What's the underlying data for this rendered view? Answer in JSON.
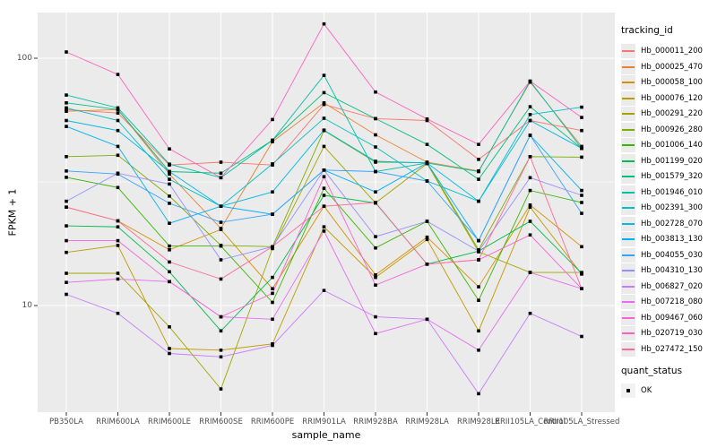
{
  "window": {
    "background": "#FFFFFF"
  },
  "axes": {
    "x_title": "sample_name",
    "y_title": "FPKM + 1",
    "y_tick_labels": [
      "100",
      "10"
    ]
  },
  "legend": {
    "tracking_title": "tracking_id",
    "quant_title": "quant_status",
    "quant_items": [
      {
        "label": "OK",
        "marker": "black-filled-square"
      }
    ]
  },
  "colors": {
    "panel_background": "#EBEBEB",
    "gridline": "#FFFFFF",
    "tick_text": "#4D4D4D",
    "point": "#000000"
  },
  "chart_data": {
    "type": "line",
    "title": "",
    "xlabel": "sample_name",
    "ylabel": "FPKM + 1",
    "y_scale": "log10",
    "ylim": [
      4,
      160
    ],
    "y_major_ticks": [
      100,
      10
    ],
    "y_minor_gridline_values": [
      31.6
    ],
    "grid": true,
    "legend_position": "right",
    "point_shape": "filled-square",
    "point_color": "#000000",
    "categories": [
      "PB350LA",
      "RRIM600LA",
      "RRIM600LE",
      "RRIM600SE",
      "RRIM600PE",
      "RRIM901LA",
      "RRIM928BA",
      "RRIM928LA",
      "RRIM928LE",
      "RRII105LA_Control",
      "RRII105LA_Stressed"
    ],
    "series": [
      {
        "name": "Hb_000011_200",
        "color": "#F8766D",
        "values": [
          62,
          60,
          37,
          38,
          37,
          65,
          57,
          56,
          39,
          56,
          51
        ]
      },
      {
        "name": "Hb_000025_470",
        "color": "#EA8331",
        "values": [
          61,
          62,
          34,
          20.5,
          46,
          66,
          49,
          38,
          35,
          80,
          44
        ]
      },
      {
        "name": "Hb_000058_100",
        "color": "#D89000",
        "values": [
          25,
          22,
          16.8,
          20.3,
          11.7,
          25.2,
          13.3,
          18.9,
          11.9,
          25.5,
          17.3
        ]
      },
      {
        "name": "Hb_000076_120",
        "color": "#C09B00",
        "values": [
          16.4,
          17.5,
          6.7,
          6.6,
          7.0,
          20.8,
          13.0,
          18.5,
          7.9,
          25.0,
          13.4
        ]
      },
      {
        "name": "Hb_000291_220",
        "color": "#A3A500",
        "values": [
          13.5,
          13.5,
          8.2,
          4.6,
          17.0,
          44,
          26.0,
          37.5,
          16.5,
          13.6,
          13.6
        ]
      },
      {
        "name": "Hb_000926_280",
        "color": "#7CAE00",
        "values": [
          40,
          40.5,
          27.7,
          17.5,
          17.3,
          51,
          38,
          37.8,
          16.8,
          40,
          39.8
        ]
      },
      {
        "name": "Hb_001006_140",
        "color": "#39B600",
        "values": [
          33,
          30,
          17.4,
          17.4,
          10.3,
          29.8,
          17.1,
          21.9,
          10.5,
          29.2,
          26.1
        ]
      },
      {
        "name": "Hb_001199_020",
        "color": "#00BB4E",
        "values": [
          21,
          20.8,
          13.7,
          7.9,
          13.0,
          27.9,
          26.0,
          14.7,
          16.6,
          21.9,
          13.5
        ]
      },
      {
        "name": "Hb_001579_320",
        "color": "#00BF7D",
        "values": [
          66,
          62,
          34.8,
          34.3,
          46.6,
          72.6,
          57,
          44.8,
          32.4,
          63.7,
          43.2
        ]
      },
      {
        "name": "Hb_001946_010",
        "color": "#00C1A3",
        "values": [
          71,
          63,
          37.3,
          32.9,
          46.6,
          85.3,
          34.8,
          37.7,
          34.8,
          80.8,
          43.2
        ]
      },
      {
        "name": "Hb_002391_300",
        "color": "#00BFC4",
        "values": [
          63,
          56,
          32.4,
          25.2,
          37.4,
          57.2,
          43.8,
          31.9,
          26.4,
          59.2,
          63.4
        ]
      },
      {
        "name": "Hb_002728_070",
        "color": "#00BAE0",
        "values": [
          56,
          51,
          34.8,
          25.2,
          28.8,
          51.2,
          38.3,
          37.7,
          26.4,
          56,
          43.2
        ]
      },
      {
        "name": "Hb_003813_130",
        "color": "#00B0F6",
        "values": [
          53,
          44,
          21.5,
          25.2,
          23.4,
          35.3,
          28.8,
          37.7,
          18.3,
          48.8,
          29.2
        ]
      },
      {
        "name": "Hb_004055_030",
        "color": "#35A2FF",
        "values": [
          35,
          34,
          25.9,
          21.7,
          23.4,
          35.3,
          34.8,
          31.9,
          18.3,
          48.8,
          23.6
        ]
      },
      {
        "name": "Hb_004310_130",
        "color": "#9590FF",
        "values": [
          26.4,
          34.3,
          31.0,
          15.3,
          17.3,
          35.3,
          19.0,
          21.9,
          16.6,
          32.9,
          27.9
        ]
      },
      {
        "name": "Hb_006827_020",
        "color": "#C77CFF",
        "values": [
          11.1,
          9.3,
          6.4,
          6.2,
          6.9,
          11.5,
          9.0,
          8.8,
          4.4,
          9.3,
          7.5
        ]
      },
      {
        "name": "Hb_007218_080",
        "color": "#E76BF3",
        "values": [
          12.4,
          12.8,
          12.5,
          9.0,
          8.8,
          20.0,
          7.7,
          8.8,
          6.6,
          13.6,
          11.7
        ]
      },
      {
        "name": "Hb_009467_060",
        "color": "#FA62DB",
        "values": [
          18.3,
          18.3,
          12.5,
          9.0,
          11.2,
          33.2,
          12.1,
          14.7,
          15.3,
          19.3,
          11.7
        ]
      },
      {
        "name": "Hb_020719_030",
        "color": "#FF62BC",
        "values": [
          106,
          86,
          43,
          32.9,
          56.5,
          137.7,
          73,
          56.8,
          44.8,
          80.8,
          57.6
        ]
      },
      {
        "name": "Hb_027472_150",
        "color": "#FF6A98",
        "values": [
          25,
          22,
          15,
          12.8,
          17.3,
          25.2,
          26.1,
          14.7,
          15.3,
          40,
          11.7
        ]
      }
    ]
  }
}
